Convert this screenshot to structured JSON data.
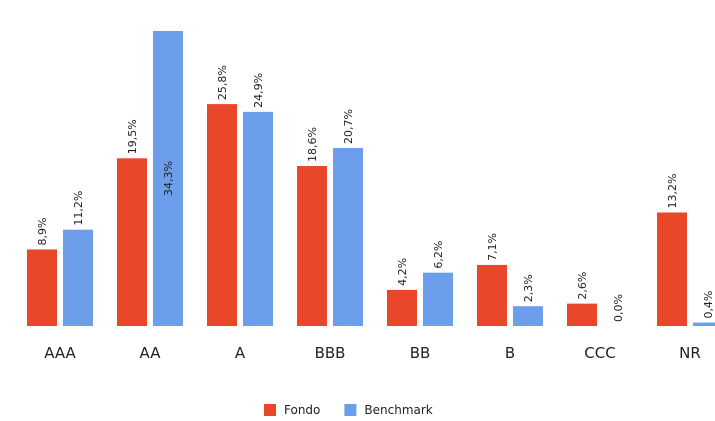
{
  "chart_data": {
    "type": "bar",
    "categories": [
      "AAA",
      "AA",
      "A",
      "BBB",
      "BB",
      "B",
      "CCC",
      "NR"
    ],
    "series": [
      {
        "name": "Fondo",
        "color": "#e8472a",
        "values": [
          8.9,
          19.5,
          25.8,
          18.6,
          4.2,
          7.1,
          2.6,
          13.2
        ],
        "value_labels": [
          "8,9%",
          "19,5%",
          "25,8%",
          "18,6%",
          "4,2%",
          "7,1%",
          "2,6%",
          "13,2%"
        ]
      },
      {
        "name": "Benchmark",
        "color": "#6d9eeb",
        "values": [
          11.2,
          34.3,
          24.9,
          20.7,
          6.2,
          2.3,
          0.0,
          0.4
        ],
        "value_labels": [
          "11,2%",
          "34,3%",
          "24,9%",
          "20,7%",
          "6,2%",
          "2,3%",
          "0,0%",
          "0,4%"
        ]
      }
    ],
    "ylim": [
      0,
      34.3
    ],
    "legend": "bottom"
  }
}
